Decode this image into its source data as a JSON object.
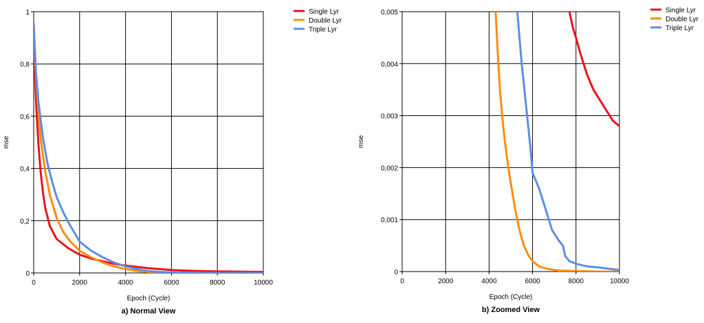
{
  "chart_data": [
    {
      "type": "line",
      "caption": "a) Normal View",
      "xlabel": "Epoch (Cycle)",
      "ylabel": "mse",
      "xlim": [
        0,
        10000
      ],
      "ylim": [
        0,
        1
      ],
      "xticks": [
        0,
        2000,
        4000,
        6000,
        8000,
        10000
      ],
      "xtick_labels": [
        "0",
        "2000",
        "4000",
        "6000",
        "8000",
        "10000"
      ],
      "yticks": [
        0,
        0.2,
        0.4,
        0.6,
        0.8,
        1
      ],
      "ytick_labels": [
        "0",
        "0,2",
        "0,4",
        "0,6",
        "0,8",
        "1"
      ],
      "grid": true,
      "legend": "right",
      "series": [
        {
          "name": "Single Lyr",
          "color": "#e8121c",
          "points": [
            [
              0,
              0.95
            ],
            [
              50,
              0.78
            ],
            [
              100,
              0.66
            ],
            [
              200,
              0.5
            ],
            [
              300,
              0.39
            ],
            [
              400,
              0.31
            ],
            [
              500,
              0.25
            ],
            [
              700,
              0.18
            ],
            [
              1000,
              0.13
            ],
            [
              1500,
              0.095
            ],
            [
              2000,
              0.07
            ],
            [
              2500,
              0.055
            ],
            [
              3000,
              0.045
            ],
            [
              3500,
              0.035
            ],
            [
              4000,
              0.028
            ],
            [
              5000,
              0.018
            ],
            [
              6000,
              0.011
            ],
            [
              7000,
              0.008
            ],
            [
              8000,
              0.006
            ],
            [
              9000,
              0.005
            ],
            [
              10000,
              0.004
            ]
          ]
        },
        {
          "name": "Double Lyr",
          "color": "#ff8c0f",
          "points": [
            [
              0,
              0.96
            ],
            [
              50,
              0.85
            ],
            [
              100,
              0.75
            ],
            [
              200,
              0.62
            ],
            [
              300,
              0.52
            ],
            [
              500,
              0.39
            ],
            [
              700,
              0.3
            ],
            [
              1000,
              0.21
            ],
            [
              1300,
              0.155
            ],
            [
              1600,
              0.12
            ],
            [
              2000,
              0.085
            ],
            [
              2500,
              0.06
            ],
            [
              3000,
              0.04
            ],
            [
              3500,
              0.025
            ],
            [
              4000,
              0.015
            ],
            [
              4500,
              0.008
            ],
            [
              5000,
              0.004
            ],
            [
              5500,
              0.002
            ],
            [
              6000,
              0.001
            ],
            [
              7000,
              0.0002
            ],
            [
              8000,
              0
            ],
            [
              10000,
              0
            ]
          ]
        },
        {
          "name": "Triple Lyr",
          "color": "#5b8ee6",
          "points": [
            [
              0,
              0.95
            ],
            [
              50,
              0.85
            ],
            [
              100,
              0.77
            ],
            [
              200,
              0.66
            ],
            [
              400,
              0.52
            ],
            [
              600,
              0.42
            ],
            [
              800,
              0.35
            ],
            [
              1000,
              0.29
            ],
            [
              1300,
              0.23
            ],
            [
              1600,
              0.18
            ],
            [
              2000,
              0.12
            ],
            [
              2500,
              0.085
            ],
            [
              3000,
              0.06
            ],
            [
              3500,
              0.04
            ],
            [
              4000,
              0.025
            ],
            [
              4500,
              0.015
            ],
            [
              5000,
              0.007
            ],
            [
              5500,
              0.004
            ],
            [
              6000,
              0.002
            ],
            [
              7000,
              0.0008
            ],
            [
              8000,
              0.0002
            ],
            [
              10000,
              0
            ]
          ]
        }
      ]
    },
    {
      "type": "line",
      "caption": "b) Zoomed View",
      "xlabel": "Epoch (Cycle)",
      "ylabel": "mse",
      "xlim": [
        0,
        10000
      ],
      "ylim": [
        0,
        0.005
      ],
      "xticks": [
        0,
        2000,
        4000,
        6000,
        8000,
        10000
      ],
      "xtick_labels": [
        "0",
        "2000",
        "4000",
        "6000",
        "8000",
        "10000"
      ],
      "yticks": [
        0,
        0.001,
        0.002,
        0.003,
        0.004,
        0.005
      ],
      "ytick_labels": [
        "0",
        "0,001",
        "0,002",
        "0,003",
        "0,004",
        "0,005"
      ],
      "grid": true,
      "legend": "right",
      "series": [
        {
          "name": "Single Lyr",
          "color": "#e8121c",
          "points": [
            [
              7700,
              0.005
            ],
            [
              7850,
              0.0047
            ],
            [
              8000,
              0.0045
            ],
            [
              8200,
              0.0042
            ],
            [
              8500,
              0.0038
            ],
            [
              8800,
              0.0035
            ],
            [
              9100,
              0.0033
            ],
            [
              9400,
              0.0031
            ],
            [
              9700,
              0.0029
            ],
            [
              10000,
              0.0028
            ]
          ]
        },
        {
          "name": "Double Lyr",
          "color": "#ff8c0f",
          "points": [
            [
              4300,
              0.005
            ],
            [
              4400,
              0.0042
            ],
            [
              4500,
              0.0035
            ],
            [
              4600,
              0.003
            ],
            [
              4700,
              0.0026
            ],
            [
              4850,
              0.0021
            ],
            [
              5000,
              0.0017
            ],
            [
              5200,
              0.0012
            ],
            [
              5400,
              0.0008
            ],
            [
              5600,
              0.0005
            ],
            [
              5800,
              0.00032
            ],
            [
              6000,
              0.0002
            ],
            [
              6300,
              0.0001
            ],
            [
              6700,
              5e-05
            ],
            [
              7200,
              2e-05
            ],
            [
              8000,
              1e-05
            ],
            [
              9000,
              0
            ],
            [
              10000,
              0
            ]
          ]
        },
        {
          "name": "Triple Lyr",
          "color": "#5b8ee6",
          "points": [
            [
              5300,
              0.005
            ],
            [
              5400,
              0.0045
            ],
            [
              5500,
              0.004
            ],
            [
              5600,
              0.0036
            ],
            [
              5700,
              0.0032
            ],
            [
              5800,
              0.0028
            ],
            [
              5900,
              0.0024
            ],
            [
              6000,
              0.0019
            ],
            [
              6300,
              0.0016
            ],
            [
              6600,
              0.0012
            ],
            [
              6900,
              0.0008
            ],
            [
              7200,
              0.0006
            ],
            [
              7400,
              0.0005
            ],
            [
              7500,
              0.0003
            ],
            [
              7700,
              0.0002
            ],
            [
              8000,
              0.00015
            ],
            [
              8500,
              0.0001
            ],
            [
              9000,
              8e-05
            ],
            [
              10000,
              3e-05
            ]
          ]
        }
      ]
    }
  ]
}
